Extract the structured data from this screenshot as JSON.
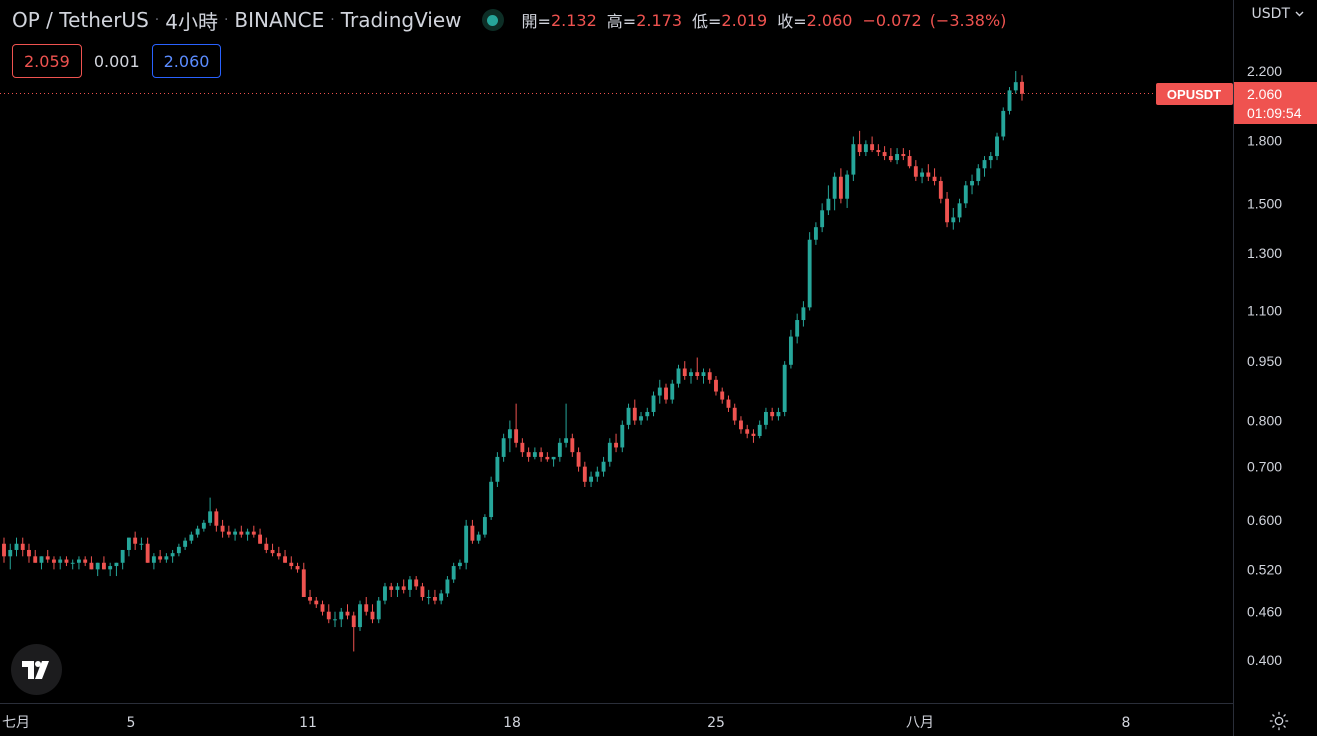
{
  "header": {
    "symbol_desc": "OP / TetherUS",
    "interval": "4小時",
    "exchange": "BINANCE",
    "publisher": "TradingView",
    "ohlc": {
      "open_label": "開=",
      "open": "2.132",
      "high_label": "高=",
      "high": "2.173",
      "low_label": "低=",
      "low": "2.019",
      "close_label": "收=",
      "close": "2.060",
      "change": "−0.072",
      "change_pct": "(−3.38%)"
    }
  },
  "trade": {
    "sell": "2.059",
    "spread": "0.001",
    "buy": "2.060"
  },
  "currency_selector": "USDT",
  "price_tag": {
    "symbol": "OPUSDT",
    "price": "2.060",
    "countdown": "01:09:54"
  },
  "colors": {
    "background": "#000000",
    "up": "#26a69a",
    "down": "#ef5350",
    "text": "#d1d4dc",
    "axis_line": "#2a2e39"
  },
  "chart_data": {
    "type": "candlestick",
    "scale": "log",
    "grid": false,
    "y_ticks": [
      "0.400",
      "0.460",
      "0.520",
      "0.600",
      "0.700",
      "0.800",
      "0.950",
      "1.100",
      "1.300",
      "1.500",
      "1.800",
      "2.200"
    ],
    "x_ticks": [
      "七月",
      "5",
      "11",
      "18",
      "25",
      "八月",
      "8"
    ],
    "ohlc": [
      [
        0.56,
        0.57,
        0.53,
        0.54
      ],
      [
        0.54,
        0.56,
        0.52,
        0.55
      ],
      [
        0.55,
        0.57,
        0.54,
        0.56
      ],
      [
        0.56,
        0.57,
        0.54,
        0.55
      ],
      [
        0.55,
        0.56,
        0.53,
        0.54
      ],
      [
        0.54,
        0.55,
        0.53,
        0.53
      ],
      [
        0.53,
        0.54,
        0.52,
        0.54
      ],
      [
        0.54,
        0.55,
        0.53,
        0.535
      ],
      [
        0.535,
        0.54,
        0.52,
        0.53
      ],
      [
        0.53,
        0.54,
        0.52,
        0.535
      ],
      [
        0.535,
        0.54,
        0.525,
        0.53
      ],
      [
        0.53,
        0.535,
        0.52,
        0.53
      ],
      [
        0.53,
        0.54,
        0.52,
        0.535
      ],
      [
        0.535,
        0.54,
        0.525,
        0.53
      ],
      [
        0.53,
        0.54,
        0.52,
        0.52
      ],
      [
        0.52,
        0.53,
        0.51,
        0.53
      ],
      [
        0.53,
        0.54,
        0.52,
        0.52
      ],
      [
        0.52,
        0.53,
        0.51,
        0.525
      ],
      [
        0.525,
        0.53,
        0.51,
        0.53
      ],
      [
        0.53,
        0.55,
        0.52,
        0.55
      ],
      [
        0.55,
        0.57,
        0.54,
        0.57
      ],
      [
        0.57,
        0.58,
        0.55,
        0.56
      ],
      [
        0.56,
        0.57,
        0.55,
        0.56
      ],
      [
        0.56,
        0.57,
        0.53,
        0.53
      ],
      [
        0.53,
        0.545,
        0.52,
        0.54
      ],
      [
        0.54,
        0.55,
        0.53,
        0.535
      ],
      [
        0.535,
        0.545,
        0.53,
        0.54
      ],
      [
        0.54,
        0.55,
        0.53,
        0.545
      ],
      [
        0.545,
        0.56,
        0.54,
        0.555
      ],
      [
        0.555,
        0.57,
        0.55,
        0.565
      ],
      [
        0.565,
        0.58,
        0.56,
        0.575
      ],
      [
        0.575,
        0.59,
        0.57,
        0.585
      ],
      [
        0.585,
        0.6,
        0.58,
        0.595
      ],
      [
        0.595,
        0.64,
        0.59,
        0.615
      ],
      [
        0.615,
        0.62,
        0.58,
        0.59
      ],
      [
        0.59,
        0.6,
        0.57,
        0.58
      ],
      [
        0.58,
        0.59,
        0.57,
        0.575
      ],
      [
        0.575,
        0.585,
        0.565,
        0.58
      ],
      [
        0.58,
        0.59,
        0.57,
        0.575
      ],
      [
        0.575,
        0.585,
        0.565,
        0.58
      ],
      [
        0.58,
        0.59,
        0.57,
        0.575
      ],
      [
        0.575,
        0.585,
        0.56,
        0.56
      ],
      [
        0.56,
        0.57,
        0.545,
        0.55
      ],
      [
        0.55,
        0.56,
        0.54,
        0.545
      ],
      [
        0.545,
        0.555,
        0.535,
        0.54
      ],
      [
        0.54,
        0.55,
        0.53,
        0.53
      ],
      [
        0.53,
        0.54,
        0.52,
        0.525
      ],
      [
        0.525,
        0.53,
        0.515,
        0.52
      ],
      [
        0.52,
        0.53,
        0.48,
        0.48
      ],
      [
        0.48,
        0.49,
        0.47,
        0.475
      ],
      [
        0.475,
        0.48,
        0.465,
        0.47
      ],
      [
        0.47,
        0.475,
        0.455,
        0.46
      ],
      [
        0.46,
        0.47,
        0.445,
        0.45
      ],
      [
        0.45,
        0.46,
        0.44,
        0.45
      ],
      [
        0.45,
        0.465,
        0.44,
        0.46
      ],
      [
        0.46,
        0.47,
        0.45,
        0.455
      ],
      [
        0.455,
        0.46,
        0.41,
        0.44
      ],
      [
        0.44,
        0.475,
        0.435,
        0.47
      ],
      [
        0.47,
        0.48,
        0.455,
        0.46
      ],
      [
        0.46,
        0.47,
        0.445,
        0.45
      ],
      [
        0.45,
        0.48,
        0.445,
        0.475
      ],
      [
        0.475,
        0.5,
        0.47,
        0.495
      ],
      [
        0.495,
        0.5,
        0.48,
        0.49
      ],
      [
        0.49,
        0.5,
        0.48,
        0.495
      ],
      [
        0.495,
        0.505,
        0.485,
        0.49
      ],
      [
        0.49,
        0.51,
        0.48,
        0.505
      ],
      [
        0.505,
        0.51,
        0.49,
        0.495
      ],
      [
        0.495,
        0.5,
        0.475,
        0.48
      ],
      [
        0.48,
        0.49,
        0.47,
        0.48
      ],
      [
        0.48,
        0.49,
        0.47,
        0.475
      ],
      [
        0.475,
        0.49,
        0.47,
        0.485
      ],
      [
        0.485,
        0.51,
        0.48,
        0.505
      ],
      [
        0.505,
        0.53,
        0.5,
        0.525
      ],
      [
        0.525,
        0.535,
        0.52,
        0.53
      ],
      [
        0.53,
        0.6,
        0.52,
        0.59
      ],
      [
        0.59,
        0.6,
        0.56,
        0.565
      ],
      [
        0.565,
        0.58,
        0.56,
        0.575
      ],
      [
        0.575,
        0.61,
        0.57,
        0.605
      ],
      [
        0.605,
        0.68,
        0.6,
        0.67
      ],
      [
        0.67,
        0.73,
        0.66,
        0.72
      ],
      [
        0.72,
        0.77,
        0.71,
        0.76
      ],
      [
        0.76,
        0.8,
        0.73,
        0.78
      ],
      [
        0.78,
        0.84,
        0.74,
        0.75
      ],
      [
        0.75,
        0.76,
        0.72,
        0.73
      ],
      [
        0.73,
        0.74,
        0.71,
        0.72
      ],
      [
        0.72,
        0.74,
        0.715,
        0.73
      ],
      [
        0.73,
        0.74,
        0.71,
        0.72
      ],
      [
        0.72,
        0.73,
        0.71,
        0.715
      ],
      [
        0.715,
        0.72,
        0.7,
        0.72
      ],
      [
        0.72,
        0.76,
        0.71,
        0.75
      ],
      [
        0.75,
        0.84,
        0.74,
        0.76
      ],
      [
        0.76,
        0.77,
        0.72,
        0.73
      ],
      [
        0.73,
        0.74,
        0.69,
        0.7
      ],
      [
        0.7,
        0.71,
        0.66,
        0.67
      ],
      [
        0.67,
        0.69,
        0.66,
        0.68
      ],
      [
        0.68,
        0.7,
        0.67,
        0.69
      ],
      [
        0.69,
        0.72,
        0.68,
        0.71
      ],
      [
        0.71,
        0.76,
        0.7,
        0.75
      ],
      [
        0.75,
        0.77,
        0.73,
        0.74
      ],
      [
        0.74,
        0.8,
        0.73,
        0.79
      ],
      [
        0.79,
        0.84,
        0.78,
        0.83
      ],
      [
        0.83,
        0.85,
        0.79,
        0.8
      ],
      [
        0.8,
        0.82,
        0.79,
        0.81
      ],
      [
        0.81,
        0.83,
        0.8,
        0.82
      ],
      [
        0.82,
        0.87,
        0.81,
        0.86
      ],
      [
        0.86,
        0.9,
        0.84,
        0.88
      ],
      [
        0.88,
        0.89,
        0.84,
        0.85
      ],
      [
        0.85,
        0.9,
        0.84,
        0.89
      ],
      [
        0.89,
        0.94,
        0.88,
        0.93
      ],
      [
        0.93,
        0.95,
        0.9,
        0.91
      ],
      [
        0.91,
        0.93,
        0.89,
        0.92
      ],
      [
        0.92,
        0.96,
        0.9,
        0.91
      ],
      [
        0.91,
        0.93,
        0.89,
        0.92
      ],
      [
        0.92,
        0.93,
        0.89,
        0.9
      ],
      [
        0.9,
        0.91,
        0.86,
        0.87
      ],
      [
        0.87,
        0.88,
        0.84,
        0.85
      ],
      [
        0.85,
        0.86,
        0.82,
        0.83
      ],
      [
        0.83,
        0.84,
        0.79,
        0.8
      ],
      [
        0.8,
        0.81,
        0.77,
        0.78
      ],
      [
        0.78,
        0.79,
        0.76,
        0.77
      ],
      [
        0.77,
        0.78,
        0.75,
        0.765
      ],
      [
        0.765,
        0.8,
        0.76,
        0.79
      ],
      [
        0.79,
        0.83,
        0.78,
        0.82
      ],
      [
        0.82,
        0.83,
        0.8,
        0.81
      ],
      [
        0.81,
        0.83,
        0.8,
        0.82
      ],
      [
        0.82,
        0.95,
        0.81,
        0.94
      ],
      [
        0.94,
        1.04,
        0.93,
        1.02
      ],
      [
        1.02,
        1.09,
        1.0,
        1.07
      ],
      [
        1.07,
        1.13,
        1.05,
        1.11
      ],
      [
        1.11,
        1.38,
        1.1,
        1.35
      ],
      [
        1.35,
        1.42,
        1.33,
        1.4
      ],
      [
        1.4,
        1.5,
        1.38,
        1.47
      ],
      [
        1.47,
        1.58,
        1.45,
        1.52
      ],
      [
        1.52,
        1.64,
        1.47,
        1.62
      ],
      [
        1.62,
        1.66,
        1.5,
        1.52
      ],
      [
        1.52,
        1.65,
        1.48,
        1.63
      ],
      [
        1.63,
        1.82,
        1.6,
        1.78
      ],
      [
        1.78,
        1.85,
        1.72,
        1.74
      ],
      [
        1.74,
        1.8,
        1.72,
        1.78
      ],
      [
        1.78,
        1.82,
        1.74,
        1.75
      ],
      [
        1.75,
        1.78,
        1.72,
        1.74
      ],
      [
        1.74,
        1.77,
        1.7,
        1.72
      ],
      [
        1.72,
        1.76,
        1.69,
        1.7
      ],
      [
        1.7,
        1.76,
        1.68,
        1.73
      ],
      [
        1.73,
        1.76,
        1.7,
        1.72
      ],
      [
        1.72,
        1.75,
        1.66,
        1.67
      ],
      [
        1.67,
        1.7,
        1.6,
        1.62
      ],
      [
        1.62,
        1.66,
        1.59,
        1.64
      ],
      [
        1.64,
        1.68,
        1.6,
        1.62
      ],
      [
        1.62,
        1.66,
        1.58,
        1.6
      ],
      [
        1.6,
        1.62,
        1.5,
        1.52
      ],
      [
        1.52,
        1.55,
        1.4,
        1.42
      ],
      [
        1.42,
        1.48,
        1.39,
        1.44
      ],
      [
        1.44,
        1.52,
        1.42,
        1.5
      ],
      [
        1.5,
        1.6,
        1.48,
        1.58
      ],
      [
        1.58,
        1.63,
        1.54,
        1.6
      ],
      [
        1.6,
        1.68,
        1.58,
        1.66
      ],
      [
        1.66,
        1.72,
        1.62,
        1.7
      ],
      [
        1.7,
        1.74,
        1.66,
        1.72
      ],
      [
        1.72,
        1.84,
        1.7,
        1.82
      ],
      [
        1.82,
        1.98,
        1.8,
        1.96
      ],
      [
        1.96,
        2.1,
        1.94,
        2.08
      ],
      [
        2.08,
        2.2,
        2.06,
        2.13
      ],
      [
        2.132,
        2.173,
        2.019,
        2.06
      ]
    ]
  }
}
